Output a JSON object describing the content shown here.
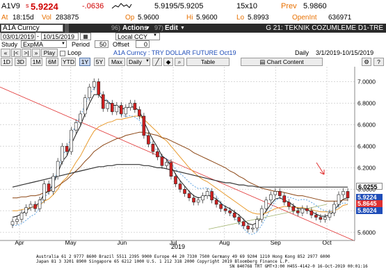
{
  "quote": {
    "ticker": "A1V9",
    "last_prefix": "s",
    "last": "5.9224",
    "change": "-.0636",
    "bid_ask": "5.9195/5.9205",
    "size": "15x10",
    "prev_label": "Prev",
    "prev": "5.9860",
    "at_label": "At",
    "time": "18:15d",
    "vol_label": "Vol",
    "volume": "283875",
    "op_label": "Op",
    "open": "5.9600",
    "hi_label": "Hi",
    "high": "5.9600",
    "lo_label": "Lo",
    "low": "5.8993",
    "oi_label": "OpenInt",
    "open_interest": "636971"
  },
  "toolbar": {
    "security_input": "A1A Curncy",
    "actions_num": "96)",
    "actions_label": "Actions",
    "edit_num": "97)",
    "edit_label": "Edit",
    "page_title": "G 21: TEKNIK COZUMLEME D1-TRE"
  },
  "dates": {
    "start": "03/01/2019",
    "end": "10/15/2019",
    "currency": "Local CCY"
  },
  "study": {
    "label": "Study",
    "name": "ExpMA",
    "period_label": "Period",
    "period": "50",
    "offset_label": "Offset",
    "offset": "0"
  },
  "play": {
    "play_label": "Play",
    "loop_label": "Loop",
    "description": "A1A Curncy : TRY DOLLAR FUTURE Oct19",
    "freq": "Daily",
    "range": "3/1/2019-10/15/2019"
  },
  "periods": {
    "buttons": [
      "1D",
      "3D",
      "1M",
      "6M",
      "YTD",
      "1Y",
      "5Y",
      "Max"
    ],
    "selected": "1Y",
    "freq_select": "Daily",
    "table_label": "Table",
    "chart_content_label": "Chart Content"
  },
  "colors": {
    "up_candle": "#ffffff",
    "down_candle": "#d02020",
    "ema_short": "#1a1a1a",
    "ema_mid": "#e89a2c",
    "ema_long": "#8b4513",
    "ema_200": "#333333",
    "trendline": "#e03030",
    "ma_blue": "#5aa0e0",
    "support": "#9fb16a",
    "accent_orange": "#f08000"
  },
  "price_labels": [
    {
      "value": "6.0255",
      "bg": "#ffffff",
      "fg": "#000000"
    },
    {
      "value": "5.9224",
      "bg": "#1f4db8",
      "fg": "#ffffff"
    },
    {
      "value": "5.8645",
      "bg": "#e03030",
      "fg": "#ffffff"
    },
    {
      "value": "5.8024",
      "bg": "#1f4db8",
      "fg": "#ffffff"
    }
  ],
  "chart_data": {
    "type": "line",
    "title": "",
    "xlabel": "2019",
    "ylabel": "",
    "x_ticks": [
      "Apr",
      "May",
      "Jun",
      "Jul",
      "Aug",
      "Sep",
      "Oct"
    ],
    "y_ticks": [
      "5.6000",
      "5.8000",
      "6.0000",
      "6.2000",
      "6.4000",
      "6.6000",
      "6.8000",
      "7.0000"
    ],
    "ylim": [
      5.55,
      7.1
    ],
    "grid": true,
    "legend": "none",
    "series": [
      {
        "key": "close",
        "values": [
          5.7,
          5.72,
          5.78,
          5.83,
          5.86,
          5.82,
          5.9,
          6.05,
          5.98,
          6.12,
          6.26,
          6.4,
          6.35,
          6.55,
          6.62,
          6.7,
          6.85,
          6.95,
          7.0,
          6.88,
          6.75,
          6.8,
          6.72,
          6.78,
          6.7,
          6.76,
          6.8,
          6.74,
          6.68,
          6.5,
          6.42,
          6.35,
          6.3,
          6.22,
          6.25,
          6.12,
          6.05,
          6.0,
          5.96,
          5.92,
          5.88,
          5.9,
          5.94,
          5.98,
          5.9,
          5.86,
          5.82,
          5.8,
          5.78,
          5.74,
          5.7,
          5.66,
          5.63,
          5.64,
          5.72,
          5.82,
          5.9,
          5.95,
          5.98,
          5.94,
          5.88,
          5.84,
          5.8,
          5.78,
          5.82,
          5.8,
          5.76,
          5.74,
          5.72,
          5.74,
          5.78,
          5.86,
          5.95,
          5.98,
          5.92
        ]
      },
      {
        "key": "ema_short",
        "values": [
          5.74,
          5.75,
          5.77,
          5.8,
          5.83,
          5.84,
          5.88,
          5.96,
          5.98,
          6.05,
          6.15,
          6.26,
          6.31,
          6.42,
          6.51,
          6.59,
          6.7,
          6.8,
          6.88,
          6.88,
          6.83,
          6.82,
          6.78,
          6.78,
          6.75,
          6.75,
          6.77,
          6.76,
          6.73,
          6.63,
          6.54,
          6.46,
          6.39,
          6.31,
          6.28,
          6.21,
          6.14,
          6.08,
          6.03,
          5.98,
          5.94,
          5.92,
          5.93,
          5.95,
          5.93,
          5.91,
          5.87,
          5.84,
          5.82,
          5.79,
          5.76,
          5.72,
          5.68,
          5.67,
          5.69,
          5.74,
          5.8,
          5.86,
          5.91,
          5.92,
          5.9,
          5.88,
          5.85,
          5.82,
          5.82,
          5.81,
          5.79,
          5.77,
          5.75,
          5.75,
          5.76,
          5.8,
          5.86,
          5.91,
          5.92
        ]
      },
      {
        "key": "ema_mid",
        "values": [
          5.8,
          5.8,
          5.81,
          5.82,
          5.83,
          5.84,
          5.85,
          5.89,
          5.91,
          5.95,
          6.0,
          6.07,
          6.11,
          6.18,
          6.25,
          6.31,
          6.39,
          6.47,
          6.54,
          6.58,
          6.6,
          6.62,
          6.63,
          6.65,
          6.65,
          6.66,
          6.67,
          6.68,
          6.68,
          6.65,
          6.61,
          6.57,
          6.53,
          6.48,
          6.45,
          6.4,
          6.35,
          6.3,
          6.25,
          6.2,
          6.16,
          6.12,
          6.09,
          6.07,
          6.04,
          6.01,
          5.98,
          5.95,
          5.92,
          5.89,
          5.86,
          5.83,
          5.8,
          5.78,
          5.77,
          5.77,
          5.78,
          5.8,
          5.82,
          5.83,
          5.84,
          5.84,
          5.83,
          5.83,
          5.83,
          5.82,
          5.81,
          5.8,
          5.79,
          5.79,
          5.79,
          5.8,
          5.82,
          5.85,
          5.86
        ]
      },
      {
        "key": "ema_long",
        "values": [
          5.92,
          5.92,
          5.93,
          5.93,
          5.94,
          5.94,
          5.95,
          5.97,
          5.98,
          6.0,
          6.03,
          6.06,
          6.09,
          6.13,
          6.17,
          6.21,
          6.26,
          6.3,
          6.35,
          6.38,
          6.41,
          6.43,
          6.45,
          6.47,
          6.48,
          6.5,
          6.51,
          6.52,
          6.53,
          6.53,
          6.52,
          6.51,
          6.5,
          6.48,
          6.47,
          6.45,
          6.43,
          6.41,
          6.39,
          6.37,
          6.34,
          6.32,
          6.3,
          6.28,
          6.26,
          6.24,
          6.22,
          6.2,
          6.17,
          6.15,
          6.12,
          6.1,
          6.07,
          6.05,
          6.03,
          6.01,
          6.0,
          5.99,
          5.98,
          5.98,
          5.97,
          5.96,
          5.95,
          5.94,
          5.94,
          5.93,
          5.92,
          5.91,
          5.9,
          5.89,
          5.89,
          5.89,
          5.89,
          5.9,
          5.9
        ]
      },
      {
        "key": "ema_200",
        "values": [
          6.02,
          6.03,
          6.04,
          6.05,
          6.06,
          6.07,
          6.08,
          6.09,
          6.1,
          6.11,
          6.12,
          6.13,
          6.14,
          6.15,
          6.16,
          6.17,
          6.18,
          6.19,
          6.2,
          6.21,
          6.21,
          6.22,
          6.22,
          6.23,
          6.23,
          6.23,
          6.23,
          6.23,
          6.23,
          6.22,
          6.22,
          6.21,
          6.2,
          6.2,
          6.19,
          6.18,
          6.17,
          6.16,
          6.15,
          6.14,
          6.13,
          6.12,
          6.11,
          6.1,
          6.09,
          6.08,
          6.07,
          6.06,
          6.06,
          6.05,
          6.04,
          6.04,
          6.03,
          6.03,
          6.02,
          6.02,
          6.02,
          6.02,
          6.02,
          6.02,
          6.02,
          6.02,
          6.02,
          6.02,
          6.02,
          6.02,
          6.02,
          6.02,
          6.02,
          6.02,
          6.02,
          6.02,
          6.02,
          6.02,
          6.02
        ]
      }
    ],
    "last_price": 5.9224,
    "annotation": "down-arrow near Oct"
  },
  "footer": {
    "line1": "Australia 61 2 9777 8600  Brazil 5511 2395 9000  Europe 44 20 7330 7500  Germany 49 69 9204 1210  Hong Kong 852 2977 6000",
    "line2": "Japan 81 3 3201 8900        Singapore 65 6212 1000        U.S. 1 212 318 2000        Copyright 2019 Bloomberg Finance L.P.",
    "line3": "SN 840768 TRT  GMT+3:00 H455-4142-0 16-Oct-2019 00:01:16"
  }
}
